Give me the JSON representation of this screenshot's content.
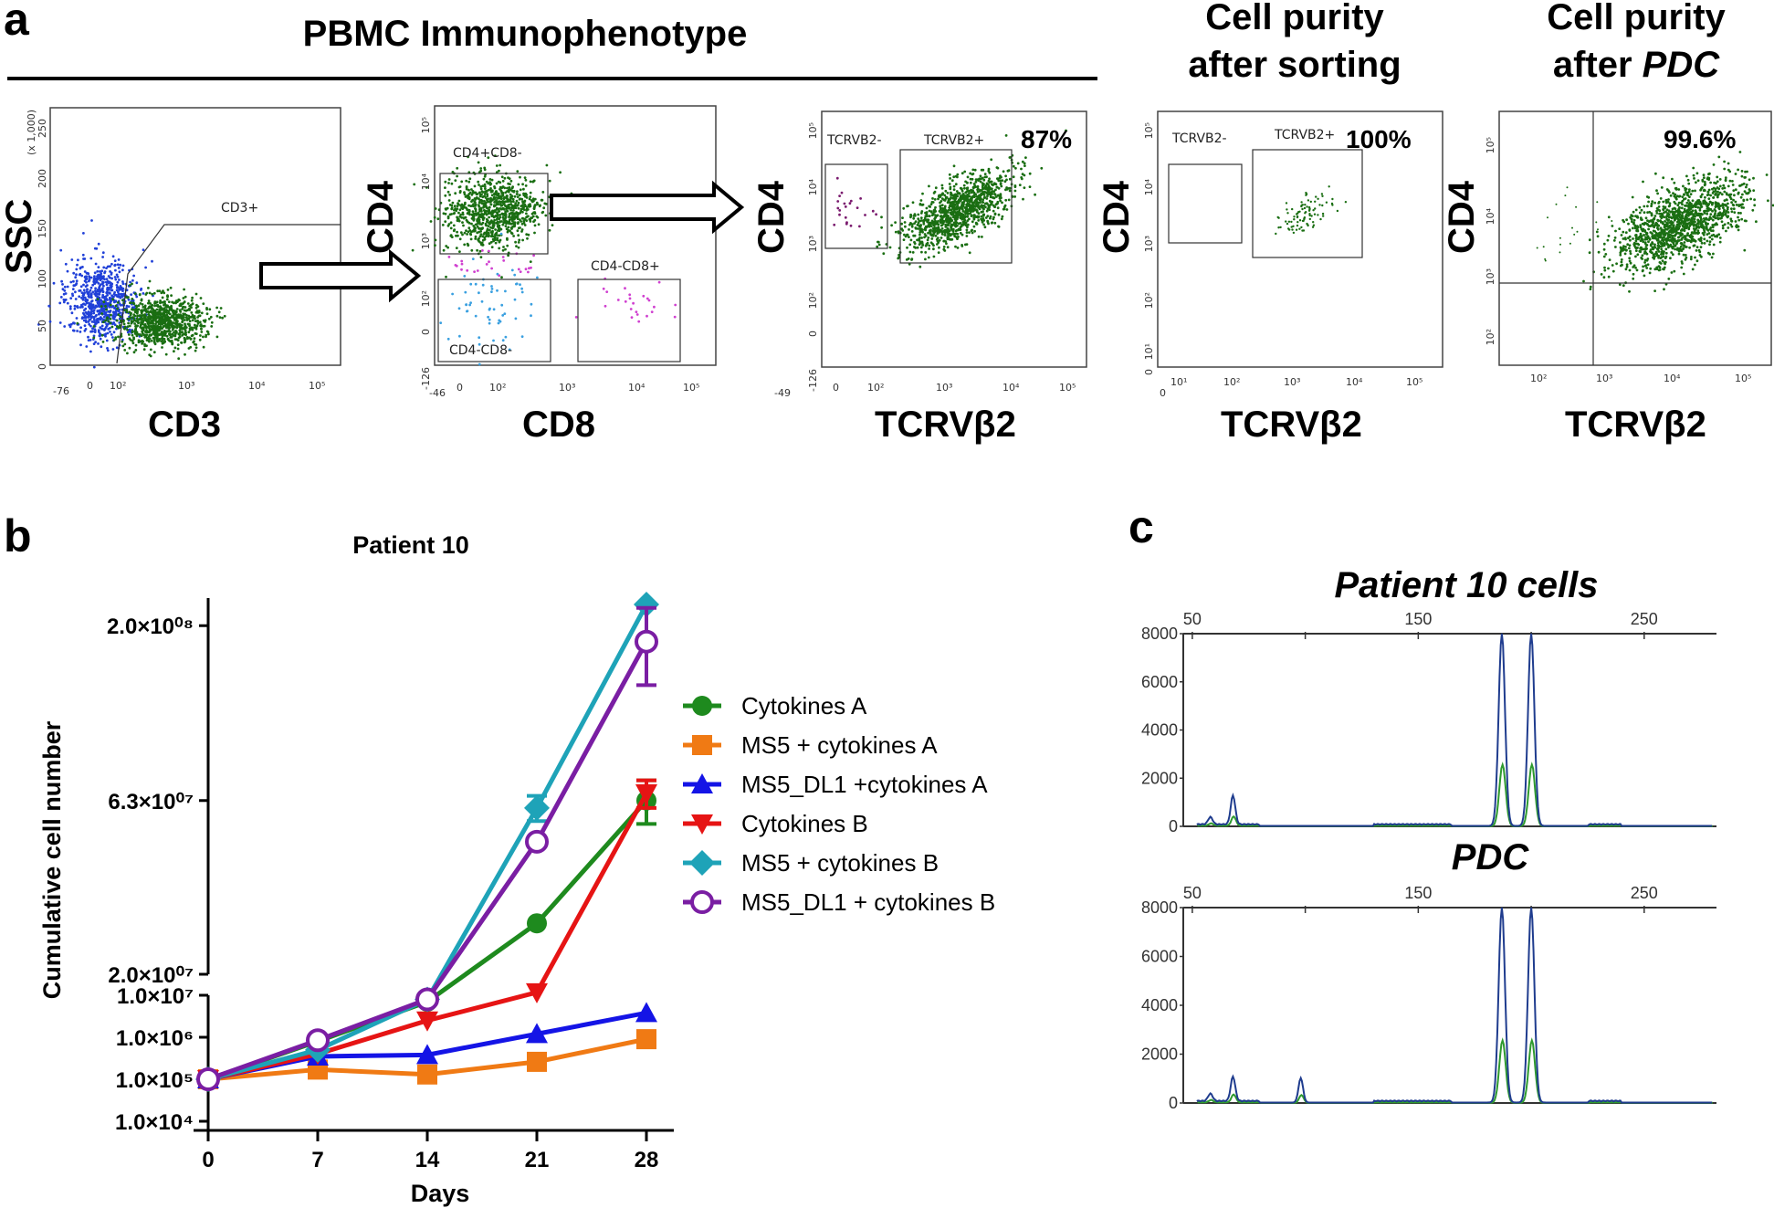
{
  "panel_a": {
    "letter": "a",
    "header_pbmc": "PBMC Immunophenotype",
    "header_sort_line1": "Cell purity",
    "header_sort_line2": "after sorting",
    "header_pdc_line1": "Cell purity",
    "header_pdc_line2_prefix": "after ",
    "header_pdc_line2_italic": "PDC",
    "plots": [
      {
        "xlabel": "CD3",
        "ylabel": "SSC",
        "ylabel_small": "(x 1,000)",
        "x_ticks": [
          "-76",
          "0",
          "10²",
          "10³",
          "10⁴",
          "10⁵"
        ],
        "y_ticks": [
          "250",
          "200",
          "150",
          "100",
          "50",
          "0"
        ],
        "gates": [
          "CD3+"
        ]
      },
      {
        "xlabel": "CD8",
        "ylabel": "CD4",
        "x_ticks": [
          "-46",
          "0",
          "10²",
          "10³",
          "10⁴",
          "10⁵"
        ],
        "y_ticks": [
          "10⁵",
          "10⁴",
          "10³",
          "10²",
          "0",
          "-126"
        ],
        "gates": [
          "CD4+CD8-",
          "CD4-CD8+",
          "CD4-CD8-"
        ]
      },
      {
        "xlabel": "TCRVβ2",
        "ylabel": "CD4",
        "percent": "87%",
        "x_ticks": [
          "-49",
          "0",
          "10²",
          "10³",
          "10⁴",
          "10⁵"
        ],
        "y_ticks": [
          "10⁵",
          "10⁴",
          "10³",
          "10²",
          "0",
          "-126"
        ],
        "gates": [
          "TCRVB2-",
          "TCRVB2+"
        ]
      },
      {
        "xlabel": "TCRVβ2",
        "ylabel": "CD4",
        "percent": "100%",
        "x_ticks": [
          "0",
          "10¹",
          "10²",
          "10³",
          "10⁴",
          "10⁵"
        ],
        "y_ticks": [
          "10⁵",
          "10⁴",
          "10³",
          "10²",
          "10¹",
          "0"
        ],
        "gates": [
          "TCRVB2-",
          "TCRVB2+"
        ]
      },
      {
        "xlabel": "TCRVβ2",
        "ylabel": "CD4",
        "percent": "99.6%",
        "x_ticks": [
          "10²",
          "10³",
          "10⁴",
          "10⁵"
        ],
        "y_ticks": [
          "10⁵",
          "10⁴",
          "10³",
          "10²"
        ],
        "gates": []
      }
    ]
  },
  "panel_b": {
    "letter": "b",
    "chart_data": {
      "type": "line",
      "title": "Patient 10",
      "xlabel": "Days",
      "ylabel": "Cumulative cell number",
      "x": [
        0,
        7,
        14,
        21,
        28
      ],
      "x_tick_labels": [
        "0",
        "7",
        "14",
        "21",
        "28"
      ],
      "y_scale": "log (broken axis)",
      "y_tick_labels": [
        "2.0×10⁰⁸",
        "6.3×10⁰⁷",
        "2.0×10⁰⁷",
        "1.0×10⁷",
        "1.0×10⁶",
        "1.0×10⁵",
        "1.0×10⁴"
      ],
      "series": [
        {
          "name": "Cytokines A",
          "color": "#1e8a1e",
          "marker": "circle",
          "values": [
            100000,
            800000,
            7000000,
            28000000,
            63000000
          ],
          "err": [
            0,
            0,
            0,
            0,
            9000000
          ]
        },
        {
          "name": "MS5 + cytokines A",
          "color": "#f07a14",
          "marker": "square",
          "values": [
            100000,
            170000,
            130000,
            260000,
            900000
          ],
          "err": [
            0,
            0,
            0,
            0,
            0
          ]
        },
        {
          "name": "MS5_DL1 +cytokines A",
          "color": "#1414e6",
          "marker": "triangle-up",
          "values": [
            100000,
            350000,
            380000,
            1200000,
            3800000
          ],
          "err": [
            0,
            0,
            0,
            0,
            0
          ]
        },
        {
          "name": "Cytokines B",
          "color": "#e61414",
          "marker": "triangle-down",
          "values": [
            100000,
            400000,
            2500000,
            11000000,
            66000000
          ],
          "err": [
            0,
            0,
            0,
            0,
            6000000
          ]
        },
        {
          "name": "MS5 + cytokines B",
          "color": "#1ea3b8",
          "marker": "diamond",
          "values": [
            100000,
            500000,
            8000000,
            60000000,
            230000000
          ],
          "err": [
            0,
            0,
            0,
            5000000,
            0
          ]
        },
        {
          "name": "MS5_DL1 + cytokines B",
          "color": "#7a1ea3",
          "marker": "circle-open",
          "values": [
            100000,
            850000,
            8000000,
            48000000,
            180000000
          ],
          "err": [
            0,
            0,
            0,
            0,
            45000000
          ]
        }
      ]
    }
  },
  "panel_c": {
    "letter": "c",
    "chart_data": [
      {
        "type": "line",
        "title": "Patient 10 cells",
        "x_ticks": [
          "50",
          "150",
          "250"
        ],
        "y_ticks": [
          "8000",
          "6000",
          "4000",
          "2000",
          "0"
        ],
        "peaks": [
          {
            "x": 58,
            "y": 300
          },
          {
            "x": 68,
            "y": 1200
          },
          {
            "x": 187,
            "y": 8000
          },
          {
            "x": 200,
            "y": 8000
          }
        ]
      },
      {
        "type": "line",
        "title": "PDC",
        "x_ticks": [
          "50",
          "150",
          "250"
        ],
        "y_ticks": [
          "8000",
          "6000",
          "4000",
          "2000",
          "0"
        ],
        "peaks": [
          {
            "x": 58,
            "y": 300
          },
          {
            "x": 68,
            "y": 1000
          },
          {
            "x": 98,
            "y": 1000
          },
          {
            "x": 187,
            "y": 8000
          },
          {
            "x": 200,
            "y": 8000
          }
        ]
      }
    ]
  }
}
